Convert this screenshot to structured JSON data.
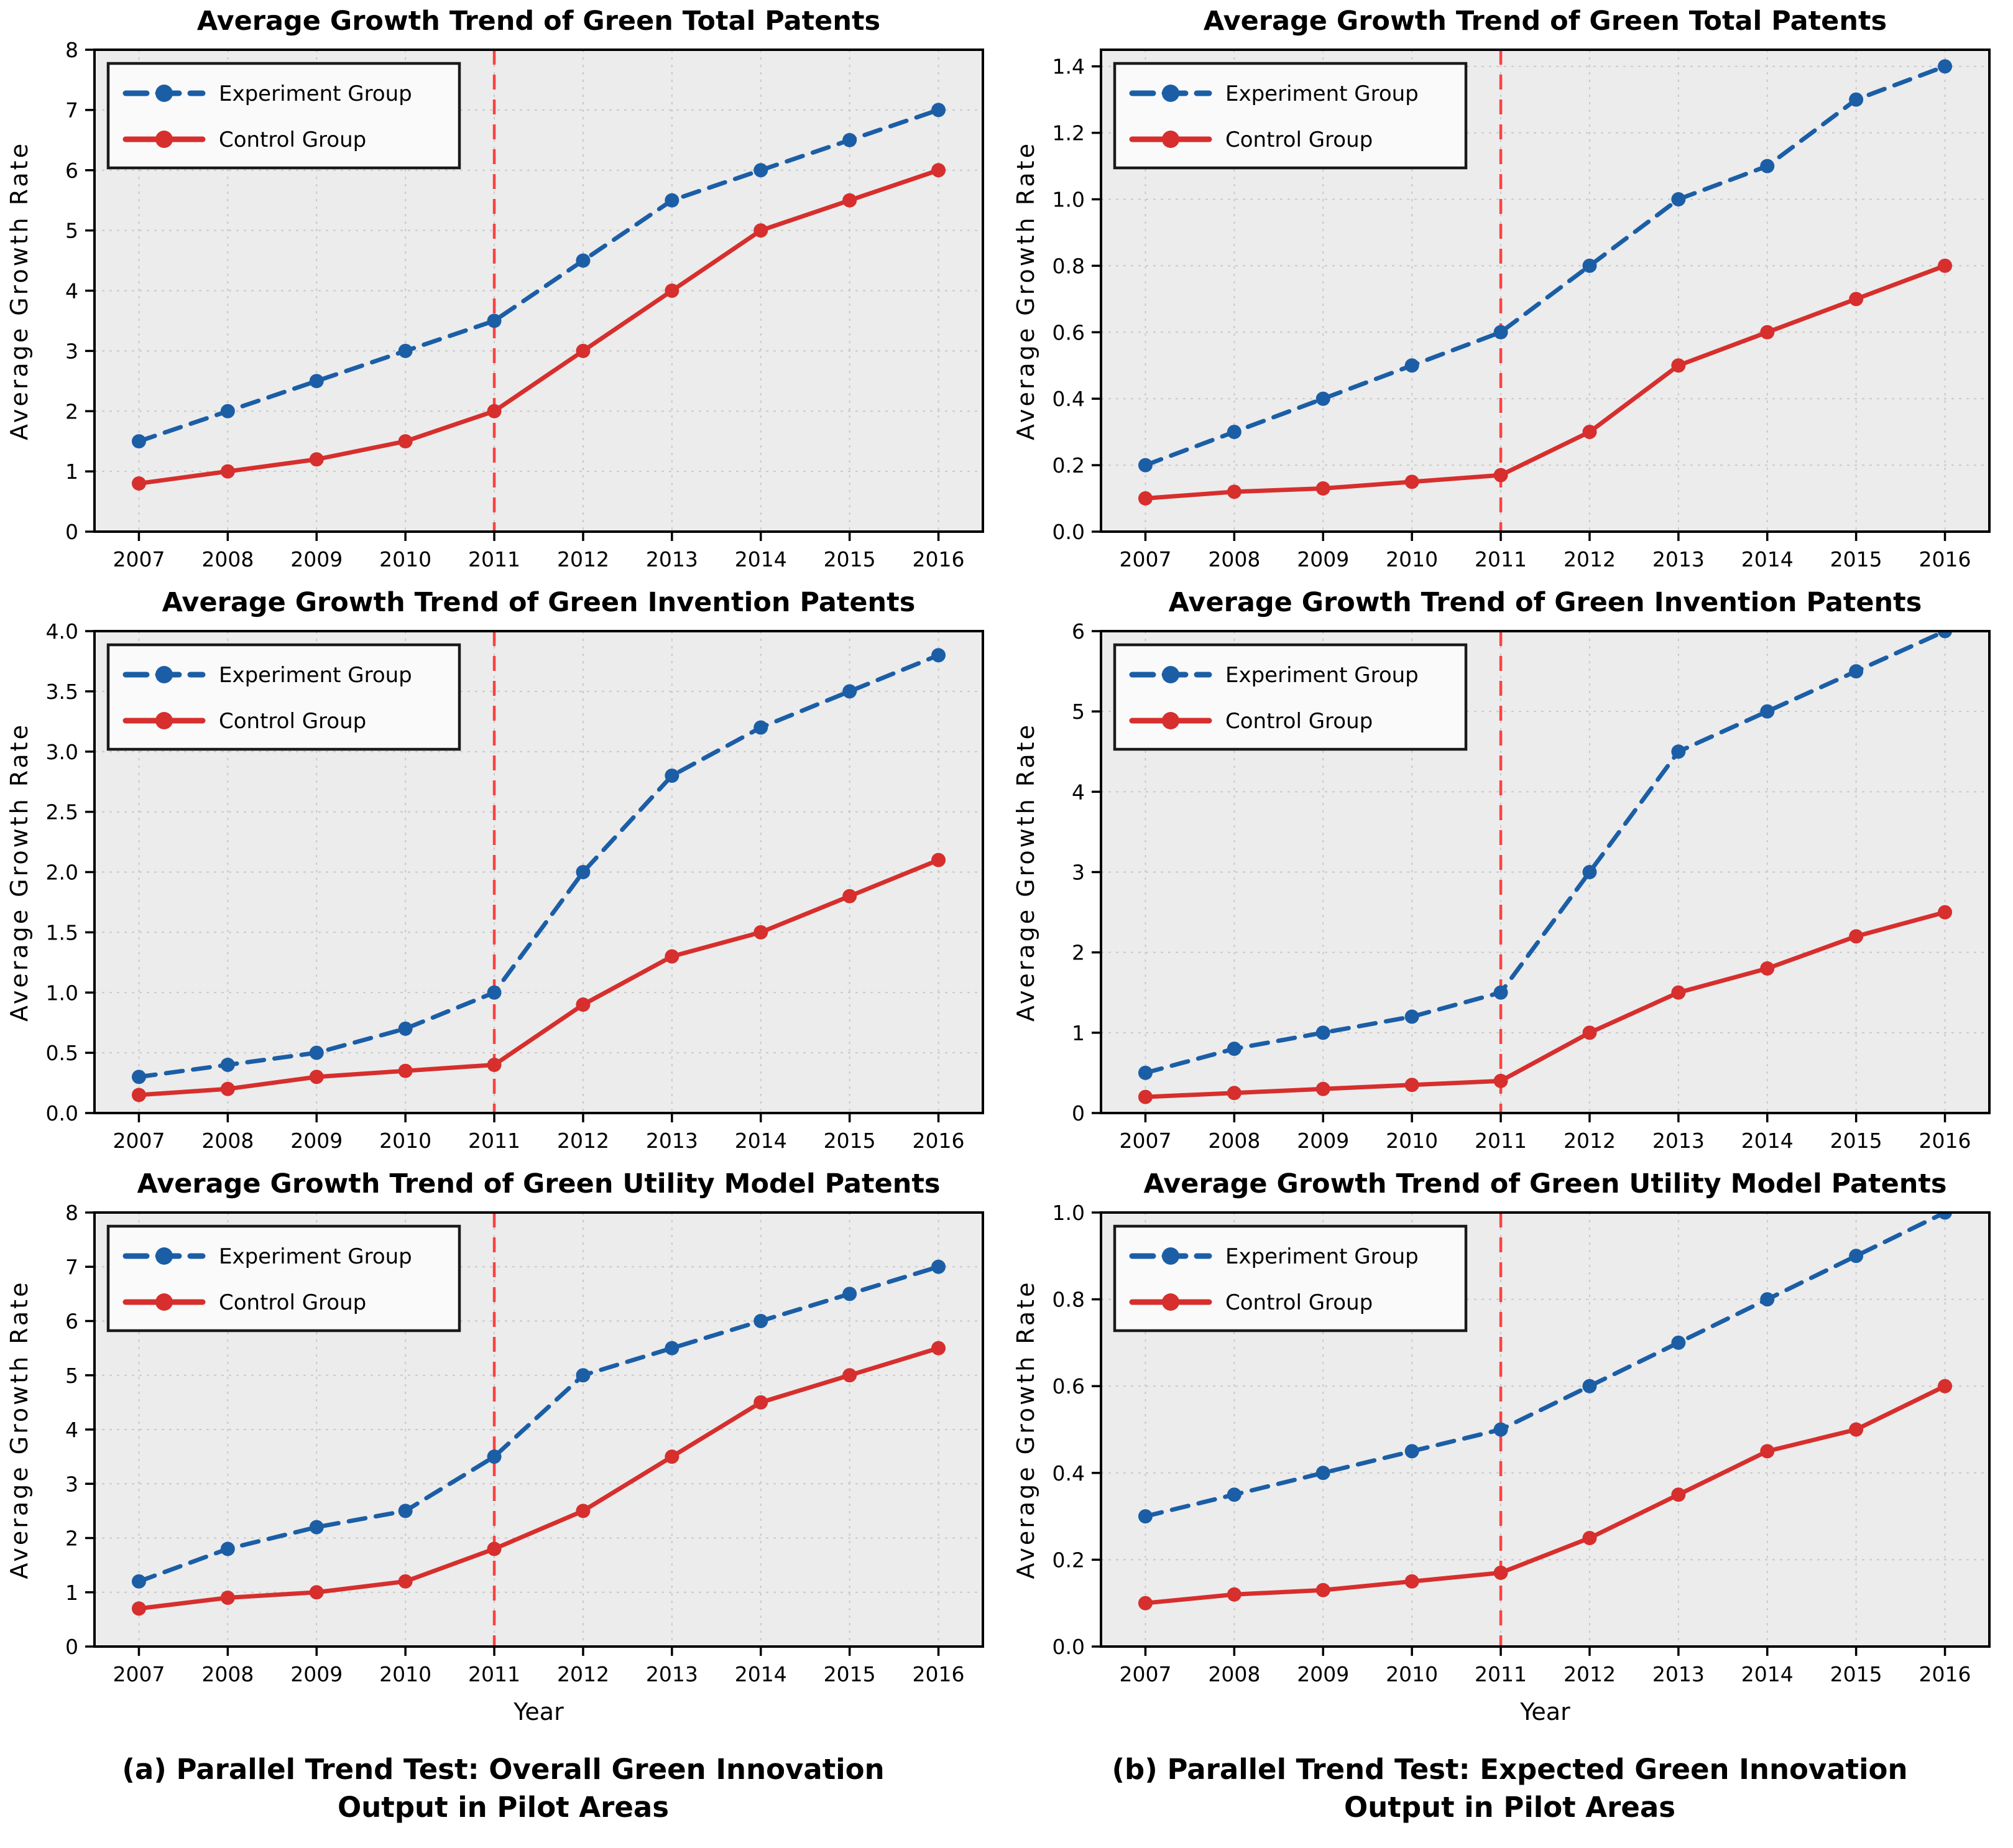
{
  "figure": {
    "ylabel": "Average Growth Rate",
    "xlabel": "Year",
    "legend_labels": [
      "Experiment Group",
      "Control Group"
    ],
    "captions": [
      "(a) Parallel Trend Test: Overall Green Innovation\nOutput in Pilot Areas",
      "(b) Parallel Trend Test: Expected Green Innovation\nOutput in Pilot Areas"
    ]
  },
  "colors": {
    "experiment_blue": "#1b5ea6",
    "control_red": "#d62f2d",
    "event_line_red": "#ff4040",
    "plot_background": "#ececec",
    "grid_gray": "#c9c9c9",
    "spine_black": "#000000",
    "legend_background": "#fafafa"
  },
  "chart_data": [
    {
      "type": "line",
      "title": "Average Growth Trend of Green Total Patents",
      "ylabel": "Average Growth Rate",
      "xlabel": "",
      "x": [
        2007,
        2008,
        2009,
        2010,
        2011,
        2012,
        2013,
        2014,
        2015,
        2016
      ],
      "xrange": [
        2006.5,
        2016.5
      ],
      "ylim": [
        0,
        8
      ],
      "yticks": [
        0,
        1,
        2,
        3,
        4,
        5,
        6,
        7,
        8
      ],
      "ydecimals": 0,
      "vline_x": 2011,
      "grid": true,
      "legend_position": "upper-left",
      "series": [
        {
          "name": "Experiment Group",
          "dash": "dashed",
          "color": "#1b5ea6",
          "values": [
            1.5,
            2.0,
            2.5,
            3.0,
            3.5,
            4.5,
            5.5,
            6.0,
            6.5,
            7.0
          ]
        },
        {
          "name": "Control Group",
          "dash": "solid",
          "color": "#d62f2d",
          "values": [
            0.8,
            1.0,
            1.2,
            1.5,
            2.0,
            3.0,
            4.0,
            5.0,
            5.5,
            6.0
          ]
        }
      ]
    },
    {
      "type": "line",
      "title": "Average Growth Trend of Green Total Patents",
      "ylabel": "Average Growth Rate",
      "xlabel": "",
      "x": [
        2007,
        2008,
        2009,
        2010,
        2011,
        2012,
        2013,
        2014,
        2015,
        2016
      ],
      "xrange": [
        2006.5,
        2016.5
      ],
      "ylim": [
        0,
        1.45
      ],
      "yticks": [
        0.0,
        0.2,
        0.4,
        0.6,
        0.8,
        1.0,
        1.2,
        1.4
      ],
      "ydecimals": 1,
      "vline_x": 2011,
      "grid": true,
      "legend_position": "upper-left",
      "series": [
        {
          "name": "Experiment Group",
          "dash": "dashed",
          "color": "#1b5ea6",
          "values": [
            0.2,
            0.3,
            0.4,
            0.5,
            0.6,
            0.8,
            1.0,
            1.1,
            1.3,
            1.4
          ]
        },
        {
          "name": "Control Group",
          "dash": "solid",
          "color": "#d62f2d",
          "values": [
            0.1,
            0.12,
            0.13,
            0.15,
            0.17,
            0.3,
            0.5,
            0.6,
            0.7,
            0.8
          ]
        }
      ]
    },
    {
      "type": "line",
      "title": "Average Growth Trend of Green Invention Patents",
      "ylabel": "Average Growth Rate",
      "xlabel": "",
      "x": [
        2007,
        2008,
        2009,
        2010,
        2011,
        2012,
        2013,
        2014,
        2015,
        2016
      ],
      "xrange": [
        2006.5,
        2016.5
      ],
      "ylim": [
        0,
        4.0
      ],
      "yticks": [
        0.0,
        0.5,
        1.0,
        1.5,
        2.0,
        2.5,
        3.0,
        3.5,
        4.0
      ],
      "ydecimals": 1,
      "vline_x": 2011,
      "grid": true,
      "legend_position": "upper-left",
      "series": [
        {
          "name": "Experiment Group",
          "dash": "dashed",
          "color": "#1b5ea6",
          "values": [
            0.3,
            0.4,
            0.5,
            0.7,
            1.0,
            2.0,
            2.8,
            3.2,
            3.5,
            3.8
          ]
        },
        {
          "name": "Control Group",
          "dash": "solid",
          "color": "#d62f2d",
          "values": [
            0.15,
            0.2,
            0.3,
            0.35,
            0.4,
            0.9,
            1.3,
            1.5,
            1.8,
            2.1
          ]
        }
      ]
    },
    {
      "type": "line",
      "title": "Average Growth Trend of Green Invention Patents",
      "ylabel": "Average Growth Rate",
      "xlabel": "",
      "x": [
        2007,
        2008,
        2009,
        2010,
        2011,
        2012,
        2013,
        2014,
        2015,
        2016
      ],
      "xrange": [
        2006.5,
        2016.5
      ],
      "ylim": [
        0,
        6
      ],
      "yticks": [
        0,
        1,
        2,
        3,
        4,
        5,
        6
      ],
      "ydecimals": 0,
      "vline_x": 2011,
      "grid": true,
      "legend_position": "upper-left",
      "series": [
        {
          "name": "Experiment Group",
          "dash": "dashed",
          "color": "#1b5ea6",
          "values": [
            0.5,
            0.8,
            1.0,
            1.2,
            1.5,
            3.0,
            4.5,
            5.0,
            5.5,
            6.0
          ]
        },
        {
          "name": "Control Group",
          "dash": "solid",
          "color": "#d62f2d",
          "values": [
            0.2,
            0.25,
            0.3,
            0.35,
            0.4,
            1.0,
            1.5,
            1.8,
            2.2,
            2.5
          ]
        }
      ]
    },
    {
      "type": "line",
      "title": "Average Growth Trend of Green Utility Model Patents",
      "ylabel": "Average Growth Rate",
      "xlabel": "Year",
      "x": [
        2007,
        2008,
        2009,
        2010,
        2011,
        2012,
        2013,
        2014,
        2015,
        2016
      ],
      "xrange": [
        2006.5,
        2016.5
      ],
      "ylim": [
        0,
        8
      ],
      "yticks": [
        0,
        1,
        2,
        3,
        4,
        5,
        6,
        7,
        8
      ],
      "ydecimals": 0,
      "vline_x": 2011,
      "grid": true,
      "legend_position": "upper-left",
      "series": [
        {
          "name": "Experiment Group",
          "dash": "dashed",
          "color": "#1b5ea6",
          "values": [
            1.2,
            1.8,
            2.2,
            2.5,
            3.5,
            5.0,
            5.5,
            6.0,
            6.5,
            7.0
          ]
        },
        {
          "name": "Control Group",
          "dash": "solid",
          "color": "#d62f2d",
          "values": [
            0.7,
            0.9,
            1.0,
            1.2,
            1.8,
            2.5,
            3.5,
            4.5,
            5.0,
            5.5
          ]
        }
      ]
    },
    {
      "type": "line",
      "title": "Average Growth Trend of Green Utility Model Patents",
      "ylabel": "Average Growth Rate",
      "xlabel": "Year",
      "x": [
        2007,
        2008,
        2009,
        2010,
        2011,
        2012,
        2013,
        2014,
        2015,
        2016
      ],
      "xrange": [
        2006.5,
        2016.5
      ],
      "ylim": [
        0,
        1.0
      ],
      "yticks": [
        0.0,
        0.2,
        0.4,
        0.6,
        0.8,
        1.0
      ],
      "ydecimals": 1,
      "vline_x": 2011,
      "grid": true,
      "legend_position": "upper-left",
      "series": [
        {
          "name": "Experiment Group",
          "dash": "dashed",
          "color": "#1b5ea6",
          "values": [
            0.3,
            0.35,
            0.4,
            0.45,
            0.5,
            0.6,
            0.7,
            0.8,
            0.9,
            1.0
          ]
        },
        {
          "name": "Control Group",
          "dash": "solid",
          "color": "#d62f2d",
          "values": [
            0.1,
            0.12,
            0.13,
            0.15,
            0.17,
            0.25,
            0.35,
            0.45,
            0.5,
            0.6
          ]
        }
      ]
    }
  ]
}
